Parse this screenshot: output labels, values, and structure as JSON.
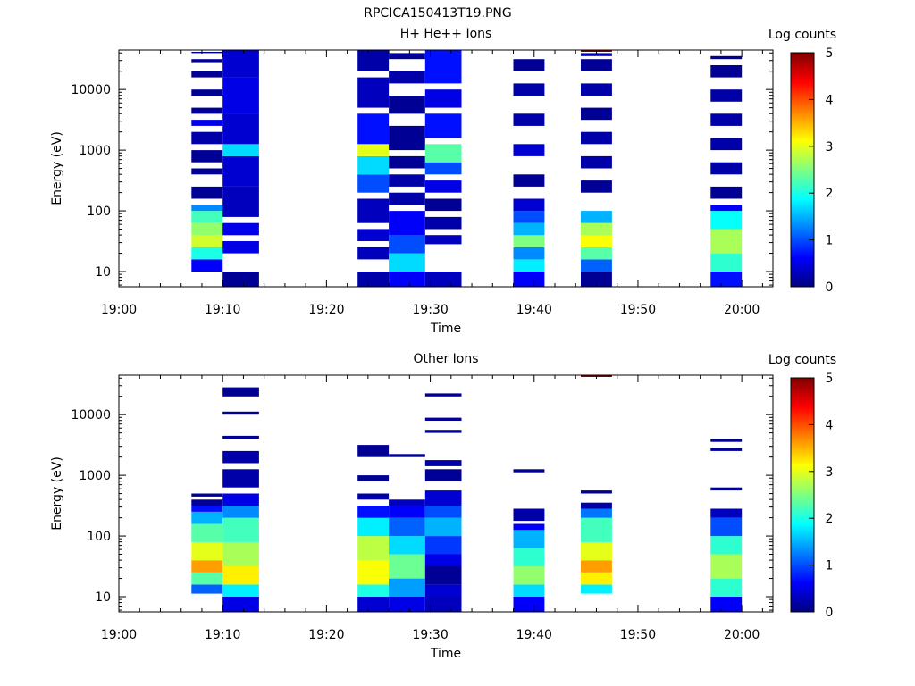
{
  "figure_title": "RPCICA150413T19.PNG",
  "colorscale": {
    "stops": [
      "#000080",
      "#0000ff",
      "#0080ff",
      "#00ffff",
      "#80ff80",
      "#ffff00",
      "#ff8000",
      "#ff0000",
      "#800000"
    ],
    "min": 0,
    "max": 5
  },
  "chart_data": [
    {
      "type": "heatmap",
      "title": "H+ He++ Ions",
      "xlabel": "Time",
      "ylabel": "Energy (eV)",
      "colorbar_label": "Log counts",
      "colorbar_ticks": [
        "0",
        "1",
        "2",
        "3",
        "4",
        "5"
      ],
      "x_tick_labels": [
        "19:00",
        "19:10",
        "19:20",
        "19:30",
        "19:40",
        "19:50",
        "20:00"
      ],
      "x_range_min": [
        0,
        63
      ],
      "y_tick_labels": [
        "10",
        "100",
        "1000",
        "10000"
      ],
      "y_log_range": [
        0.75,
        4.65
      ],
      "columns": [
        {
          "start_min": 7,
          "end_min": 10,
          "bins": [
            [
              1.0,
              1.2,
              0.6
            ],
            [
              1.2,
              1.4,
              2.0
            ],
            [
              1.4,
              1.6,
              2.9
            ],
            [
              1.6,
              1.8,
              2.6
            ],
            [
              1.8,
              2.0,
              2.2
            ],
            [
              2.0,
              2.1,
              1.3
            ],
            [
              2.2,
              2.4,
              0.1
            ],
            [
              2.6,
              2.7,
              0.1
            ],
            [
              2.8,
              3.0,
              0.1
            ],
            [
              3.1,
              3.3,
              0.2
            ],
            [
              3.4,
              3.5,
              0.5
            ],
            [
              3.6,
              3.7,
              0.1
            ],
            [
              3.9,
              4.0,
              0.1
            ],
            [
              4.2,
              4.3,
              0.1
            ],
            [
              4.45,
              4.5,
              0.1
            ],
            [
              4.6,
              4.62,
              0.1
            ]
          ]
        },
        {
          "start_min": 10,
          "end_min": 13.5,
          "bins": [
            [
              0.75,
              1.0,
              0.1
            ],
            [
              1.3,
              1.5,
              0.5
            ],
            [
              1.6,
              1.8,
              0.5
            ],
            [
              1.9,
              2.4,
              0.3
            ],
            [
              2.4,
              2.9,
              0.4
            ],
            [
              2.9,
              3.1,
              1.7
            ],
            [
              3.1,
              3.6,
              0.4
            ],
            [
              3.6,
              4.2,
              0.5
            ],
            [
              4.2,
              4.65,
              0.4
            ]
          ]
        },
        {
          "start_min": 23,
          "end_min": 26,
          "bins": [
            [
              0.75,
              1.0,
              0.2
            ],
            [
              1.2,
              1.4,
              0.3
            ],
            [
              1.5,
              1.7,
              0.4
            ],
            [
              1.8,
              2.2,
              0.3
            ],
            [
              2.3,
              2.6,
              1.0
            ],
            [
              2.6,
              2.9,
              1.7
            ],
            [
              2.9,
              3.1,
              3.0
            ],
            [
              3.1,
              3.6,
              0.7
            ],
            [
              3.7,
              4.2,
              0.3
            ],
            [
              4.3,
              4.65,
              0.2
            ]
          ]
        },
        {
          "start_min": 26,
          "end_min": 29.5,
          "bins": [
            [
              0.75,
              1.0,
              0.6
            ],
            [
              1.0,
              1.3,
              1.7
            ],
            [
              1.3,
              1.6,
              1.0
            ],
            [
              1.6,
              2.0,
              0.6
            ],
            [
              2.1,
              2.3,
              0.2
            ],
            [
              2.4,
              2.6,
              0.2
            ],
            [
              2.7,
              2.9,
              0.1
            ],
            [
              3.0,
              3.4,
              0.1
            ],
            [
              3.6,
              3.9,
              0.1
            ],
            [
              4.1,
              4.3,
              0.2
            ],
            [
              4.5,
              4.6,
              0.1
            ]
          ]
        },
        {
          "start_min": 29.5,
          "end_min": 33,
          "bins": [
            [
              0.75,
              1.0,
              0.3
            ],
            [
              1.45,
              1.6,
              0.3
            ],
            [
              1.7,
              1.9,
              0.2
            ],
            [
              2.0,
              2.2,
              0.1
            ],
            [
              2.3,
              2.5,
              0.5
            ],
            [
              2.6,
              2.8,
              1.0
            ],
            [
              2.8,
              3.1,
              2.3
            ],
            [
              3.2,
              3.6,
              0.7
            ],
            [
              3.7,
              4.0,
              0.5
            ],
            [
              4.1,
              4.65,
              0.7
            ]
          ]
        },
        {
          "start_min": 38,
          "end_min": 41,
          "bins": [
            [
              0.75,
              1.0,
              0.6
            ],
            [
              1.0,
              1.2,
              1.8
            ],
            [
              1.2,
              1.4,
              1.3
            ],
            [
              1.4,
              1.6,
              2.5
            ],
            [
              1.6,
              1.8,
              1.5
            ],
            [
              1.8,
              2.0,
              1.0
            ],
            [
              2.0,
              2.2,
              0.4
            ],
            [
              2.4,
              2.6,
              0.1
            ],
            [
              2.9,
              3.1,
              0.4
            ],
            [
              3.4,
              3.6,
              0.2
            ],
            [
              3.9,
              4.1,
              0.2
            ],
            [
              4.3,
              4.5,
              0.1
            ]
          ]
        },
        {
          "start_min": 44.5,
          "end_min": 47.5,
          "bins": [
            [
              0.75,
              1.0,
              0.1
            ],
            [
              1.0,
              1.2,
              1.1
            ],
            [
              1.2,
              1.4,
              2.3
            ],
            [
              1.4,
              1.6,
              3.1
            ],
            [
              1.6,
              1.8,
              2.7
            ],
            [
              1.8,
              2.0,
              1.5
            ],
            [
              2.3,
              2.5,
              0.1
            ],
            [
              2.7,
              2.9,
              0.2
            ],
            [
              3.1,
              3.3,
              0.2
            ],
            [
              3.5,
              3.7,
              0.1
            ],
            [
              3.9,
              4.1,
              0.2
            ],
            [
              4.3,
              4.5,
              0.1
            ],
            [
              4.55,
              4.6,
              0.2
            ],
            [
              4.62,
              4.65,
              5.0
            ]
          ]
        },
        {
          "start_min": 57,
          "end_min": 60,
          "bins": [
            [
              0.75,
              1.0,
              0.7
            ],
            [
              1.0,
              1.3,
              2.1
            ],
            [
              1.3,
              1.7,
              2.7
            ],
            [
              1.7,
              2.0,
              1.9
            ],
            [
              2.0,
              2.1,
              0.6
            ],
            [
              2.2,
              2.4,
              0.1
            ],
            [
              2.6,
              2.8,
              0.2
            ],
            [
              3.0,
              3.2,
              0.2
            ],
            [
              3.4,
              3.6,
              0.2
            ],
            [
              3.8,
              4.0,
              0.2
            ],
            [
              4.2,
              4.4,
              0.1
            ],
            [
              4.5,
              4.55,
              0.1
            ]
          ]
        }
      ]
    },
    {
      "type": "heatmap",
      "title": "Other Ions",
      "xlabel": "Time",
      "ylabel": "Energy (eV)",
      "colorbar_label": "Log counts",
      "colorbar_ticks": [
        "0",
        "1",
        "2",
        "3",
        "4",
        "5"
      ],
      "x_tick_labels": [
        "19:00",
        "19:10",
        "19:20",
        "19:30",
        "19:40",
        "19:50",
        "20:00"
      ],
      "x_range_min": [
        0,
        63
      ],
      "y_tick_labels": [
        "10",
        "100",
        "1000",
        "10000"
      ],
      "y_log_range": [
        0.75,
        4.65
      ],
      "columns": [
        {
          "start_min": 7,
          "end_min": 10,
          "bins": [
            [
              1.05,
              1.2,
              1.1
            ],
            [
              1.2,
              1.4,
              2.3
            ],
            [
              1.4,
              1.6,
              3.6
            ],
            [
              1.6,
              1.9,
              3.0
            ],
            [
              1.9,
              2.2,
              2.3
            ],
            [
              2.2,
              2.4,
              1.5
            ],
            [
              2.4,
              2.5,
              0.7
            ],
            [
              2.5,
              2.6,
              0.1
            ],
            [
              2.65,
              2.7,
              0.1
            ]
          ]
        },
        {
          "start_min": 10,
          "end_min": 13.5,
          "bins": [
            [
              0.75,
              1.0,
              0.5
            ],
            [
              1.0,
              1.2,
              1.8
            ],
            [
              1.2,
              1.5,
              3.2
            ],
            [
              1.5,
              1.9,
              2.7
            ],
            [
              1.9,
              2.3,
              2.2
            ],
            [
              2.3,
              2.5,
              1.3
            ],
            [
              2.5,
              2.7,
              0.5
            ],
            [
              2.8,
              3.1,
              0.2
            ],
            [
              3.2,
              3.4,
              0.2
            ],
            [
              3.6,
              3.65,
              0.1
            ],
            [
              4.0,
              4.05,
              0.1
            ],
            [
              4.3,
              4.45,
              0.1
            ]
          ]
        },
        {
          "start_min": 23,
          "end_min": 26,
          "bins": [
            [
              0.75,
              1.0,
              0.4
            ],
            [
              1.0,
              1.2,
              2.0
            ],
            [
              1.2,
              1.6,
              3.1
            ],
            [
              1.6,
              2.0,
              2.8
            ],
            [
              2.0,
              2.3,
              1.8
            ],
            [
              2.3,
              2.5,
              0.7
            ],
            [
              2.6,
              2.7,
              0.2
            ],
            [
              2.9,
              3.0,
              0.1
            ],
            [
              3.3,
              3.5,
              0.1
            ]
          ]
        },
        {
          "start_min": 26,
          "end_min": 29.5,
          "bins": [
            [
              0.75,
              1.0,
              0.5
            ],
            [
              1.0,
              1.3,
              1.4
            ],
            [
              1.3,
              1.7,
              2.4
            ],
            [
              1.7,
              2.0,
              1.7
            ],
            [
              2.0,
              2.3,
              1.1
            ],
            [
              2.3,
              2.5,
              0.6
            ],
            [
              2.5,
              2.6,
              0.3
            ],
            [
              3.3,
              3.35,
              0.1
            ]
          ]
        },
        {
          "start_min": 29.5,
          "end_min": 33,
          "bins": [
            [
              0.75,
              1.0,
              0.3
            ],
            [
              1.0,
              1.2,
              0.4
            ],
            [
              1.2,
              1.5,
              0.1
            ],
            [
              1.5,
              1.7,
              0.5
            ],
            [
              1.7,
              2.0,
              0.9
            ],
            [
              2.0,
              2.3,
              1.5
            ],
            [
              2.3,
              2.5,
              1.0
            ],
            [
              2.5,
              2.75,
              0.4
            ],
            [
              2.9,
              3.1,
              0.1
            ],
            [
              3.15,
              3.25,
              0.2
            ],
            [
              3.7,
              3.75,
              0.1
            ],
            [
              3.9,
              3.95,
              0.1
            ],
            [
              4.3,
              4.35,
              0.1
            ]
          ]
        },
        {
          "start_min": 38,
          "end_min": 41,
          "bins": [
            [
              0.75,
              1.0,
              0.6
            ],
            [
              1.0,
              1.2,
              1.7
            ],
            [
              1.2,
              1.5,
              2.6
            ],
            [
              1.5,
              1.8,
              2.1
            ],
            [
              1.8,
              2.1,
              1.5
            ],
            [
              2.1,
              2.2,
              0.6
            ],
            [
              2.25,
              2.45,
              0.2
            ],
            [
              3.05,
              3.1,
              0.1
            ]
          ]
        },
        {
          "start_min": 44.5,
          "end_min": 47.5,
          "bins": [
            [
              1.05,
              1.2,
              1.8
            ],
            [
              1.2,
              1.4,
              3.2
            ],
            [
              1.4,
              1.6,
              3.6
            ],
            [
              1.6,
              1.9,
              3.0
            ],
            [
              1.9,
              2.3,
              2.2
            ],
            [
              2.3,
              2.45,
              1.2
            ],
            [
              2.45,
              2.55,
              0.2
            ],
            [
              2.7,
              2.75,
              0.1
            ],
            [
              4.62,
              4.65,
              5.0
            ]
          ]
        },
        {
          "start_min": 57,
          "end_min": 60,
          "bins": [
            [
              0.75,
              1.0,
              0.6
            ],
            [
              1.0,
              1.3,
              2.1
            ],
            [
              1.3,
              1.7,
              2.7
            ],
            [
              1.7,
              2.0,
              2.1
            ],
            [
              2.0,
              2.3,
              1.0
            ],
            [
              2.3,
              2.45,
              0.3
            ],
            [
              2.75,
              2.8,
              0.1
            ],
            [
              3.4,
              3.45,
              0.1
            ],
            [
              3.55,
              3.6,
              0.1
            ]
          ]
        }
      ]
    }
  ]
}
